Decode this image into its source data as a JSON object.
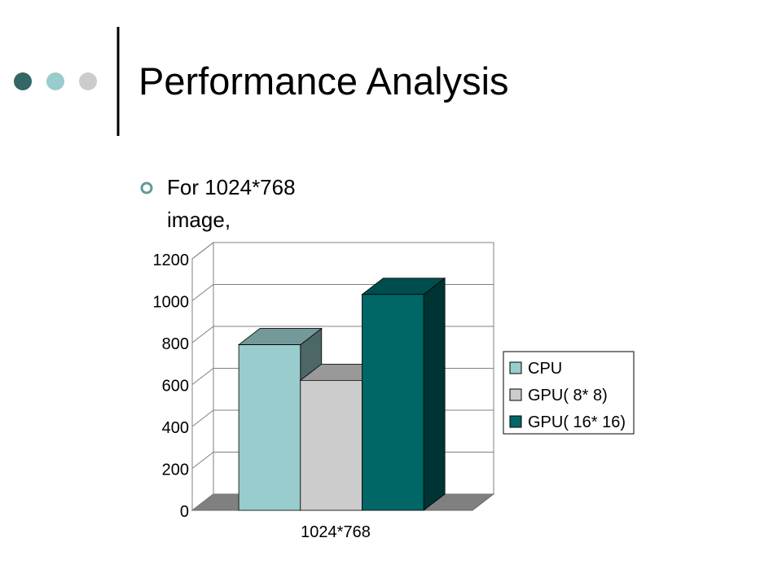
{
  "header": {
    "title": "Performance Analysis"
  },
  "bullets": [
    "For 1024*768 image,"
  ],
  "chart_data": {
    "type": "bar3d",
    "categories": [
      "1024*768"
    ],
    "series": [
      {
        "name": "CPU",
        "color": "#99cccc",
        "values": [
          790
        ]
      },
      {
        "name": "GPU( 8* 8)",
        "color": "#cccccc",
        "values": [
          620
        ]
      },
      {
        "name": "GPU( 16* 16)",
        "color": "#006666",
        "values": [
          1030
        ]
      }
    ],
    "ylim": [
      0,
      1200
    ],
    "yticks": [
      0,
      200,
      400,
      600,
      800,
      1000,
      1200
    ],
    "grid": true,
    "legend": "right"
  }
}
